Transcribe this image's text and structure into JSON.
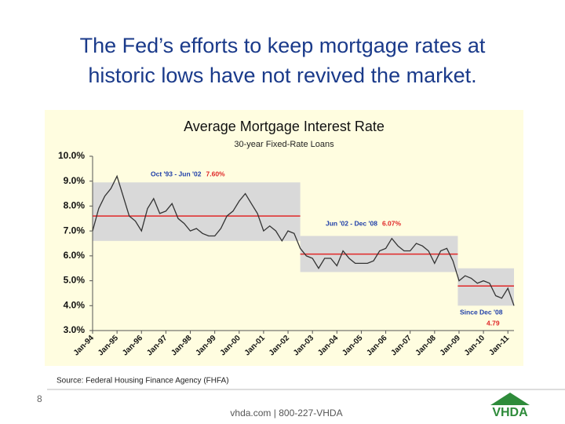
{
  "slide": {
    "title_lines": [
      "The Fed’s efforts to keep mortgage rates at",
      "historic lows have not revived the market."
    ],
    "source": "Source:  Federal Housing Finance Agency (FHFA)",
    "page_number": "8",
    "footer": "vhda.com | 800-227-VHDA",
    "logo": "VHDA"
  },
  "chart_data": {
    "type": "line",
    "title": "Average Mortgage Interest Rate",
    "subtitle": "30-year Fixed-Rate Loans",
    "x": [
      1994.0,
      1994.25,
      1994.5,
      1994.75,
      1995.0,
      1995.25,
      1995.5,
      1995.75,
      1996.0,
      1996.25,
      1996.5,
      1996.75,
      1997.0,
      1997.25,
      1997.5,
      1997.75,
      1998.0,
      1998.25,
      1998.5,
      1998.75,
      1999.0,
      1999.25,
      1999.5,
      1999.75,
      2000.0,
      2000.25,
      2000.5,
      2000.75,
      2001.0,
      2001.25,
      2001.5,
      2001.75,
      2002.0,
      2002.25,
      2002.5,
      2002.75,
      2003.0,
      2003.25,
      2003.5,
      2003.75,
      2004.0,
      2004.25,
      2004.5,
      2004.75,
      2005.0,
      2005.25,
      2005.5,
      2005.75,
      2006.0,
      2006.25,
      2006.5,
      2006.75,
      2007.0,
      2007.25,
      2007.5,
      2007.75,
      2008.0,
      2008.25,
      2008.5,
      2008.75,
      2009.0,
      2009.25,
      2009.5,
      2009.75,
      2010.0,
      2010.25,
      2010.5,
      2010.75,
      2011.0,
      2011.25
    ],
    "series": [
      {
        "name": "Average Mortgage Interest Rate",
        "color": "#333333",
        "values": [
          7.0,
          7.9,
          8.4,
          8.7,
          9.2,
          8.4,
          7.6,
          7.4,
          7.0,
          7.9,
          8.3,
          7.7,
          7.8,
          8.1,
          7.5,
          7.3,
          7.0,
          7.1,
          6.9,
          6.8,
          6.8,
          7.1,
          7.6,
          7.8,
          8.2,
          8.5,
          8.1,
          7.7,
          7.0,
          7.2,
          7.0,
          6.6,
          7.0,
          6.9,
          6.3,
          6.0,
          5.9,
          5.5,
          5.9,
          5.9,
          5.6,
          6.2,
          5.9,
          5.7,
          5.7,
          5.7,
          5.8,
          6.2,
          6.3,
          6.7,
          6.4,
          6.2,
          6.2,
          6.5,
          6.4,
          6.2,
          5.7,
          6.2,
          6.3,
          5.8,
          5.0,
          5.2,
          5.1,
          4.9,
          5.0,
          4.9,
          4.4,
          4.3,
          4.7,
          4.0
        ]
      }
    ],
    "xlim": [
      1994.0,
      2011.25
    ],
    "xticks": [
      {
        "value": 1994,
        "label": "Jan-94"
      },
      {
        "value": 1995,
        "label": "Jan-95"
      },
      {
        "value": 1996,
        "label": "Jan-96"
      },
      {
        "value": 1997,
        "label": "Jan-97"
      },
      {
        "value": 1998,
        "label": "Jan-98"
      },
      {
        "value": 1999,
        "label": "Jan-99"
      },
      {
        "value": 2000,
        "label": "Jan-00"
      },
      {
        "value": 2001,
        "label": "Jan-01"
      },
      {
        "value": 2002,
        "label": "Jan-02"
      },
      {
        "value": 2003,
        "label": "Jan-03"
      },
      {
        "value": 2004,
        "label": "Jan-04"
      },
      {
        "value": 2005,
        "label": "Jan-05"
      },
      {
        "value": 2006,
        "label": "Jan-06"
      },
      {
        "value": 2007,
        "label": "Jan-07"
      },
      {
        "value": 2008,
        "label": "Jan-08"
      },
      {
        "value": 2009,
        "label": "Jan-09"
      },
      {
        "value": 2010,
        "label": "Jan-10"
      },
      {
        "value": 2011,
        "label": "Jan-11"
      }
    ],
    "ylim": [
      3.0,
      10.0
    ],
    "yticks": [
      {
        "value": 3,
        "label": "3.0%"
      },
      {
        "value": 4,
        "label": "4.0%"
      },
      {
        "value": 5,
        "label": "5.0%"
      },
      {
        "value": 6,
        "label": "6.0%"
      },
      {
        "value": 7,
        "label": "7.0%"
      },
      {
        "value": 8,
        "label": "8.0%"
      },
      {
        "value": 9,
        "label": "9.0%"
      },
      {
        "value": 10,
        "label": "10.0%"
      }
    ],
    "periods": [
      {
        "label": "Oct '93 - Jun '02",
        "start": 1994.0,
        "end": 2002.5,
        "range": [
          6.6,
          8.95
        ],
        "average": 7.6,
        "value_label": "7.60%"
      },
      {
        "label": "Jun '02 - Dec '08",
        "start": 2002.5,
        "end": 2008.95,
        "range": [
          5.35,
          6.8
        ],
        "average": 6.07,
        "value_label": "6.07%"
      },
      {
        "label": "Since Dec '08",
        "start": 2008.95,
        "end": 2011.25,
        "range": [
          4.0,
          5.5
        ],
        "average": 4.79,
        "value_label": "4.79"
      }
    ],
    "box_color": "#d9d9d9",
    "average_color": "#e02828",
    "period_text_color": "#1f3fa8"
  }
}
